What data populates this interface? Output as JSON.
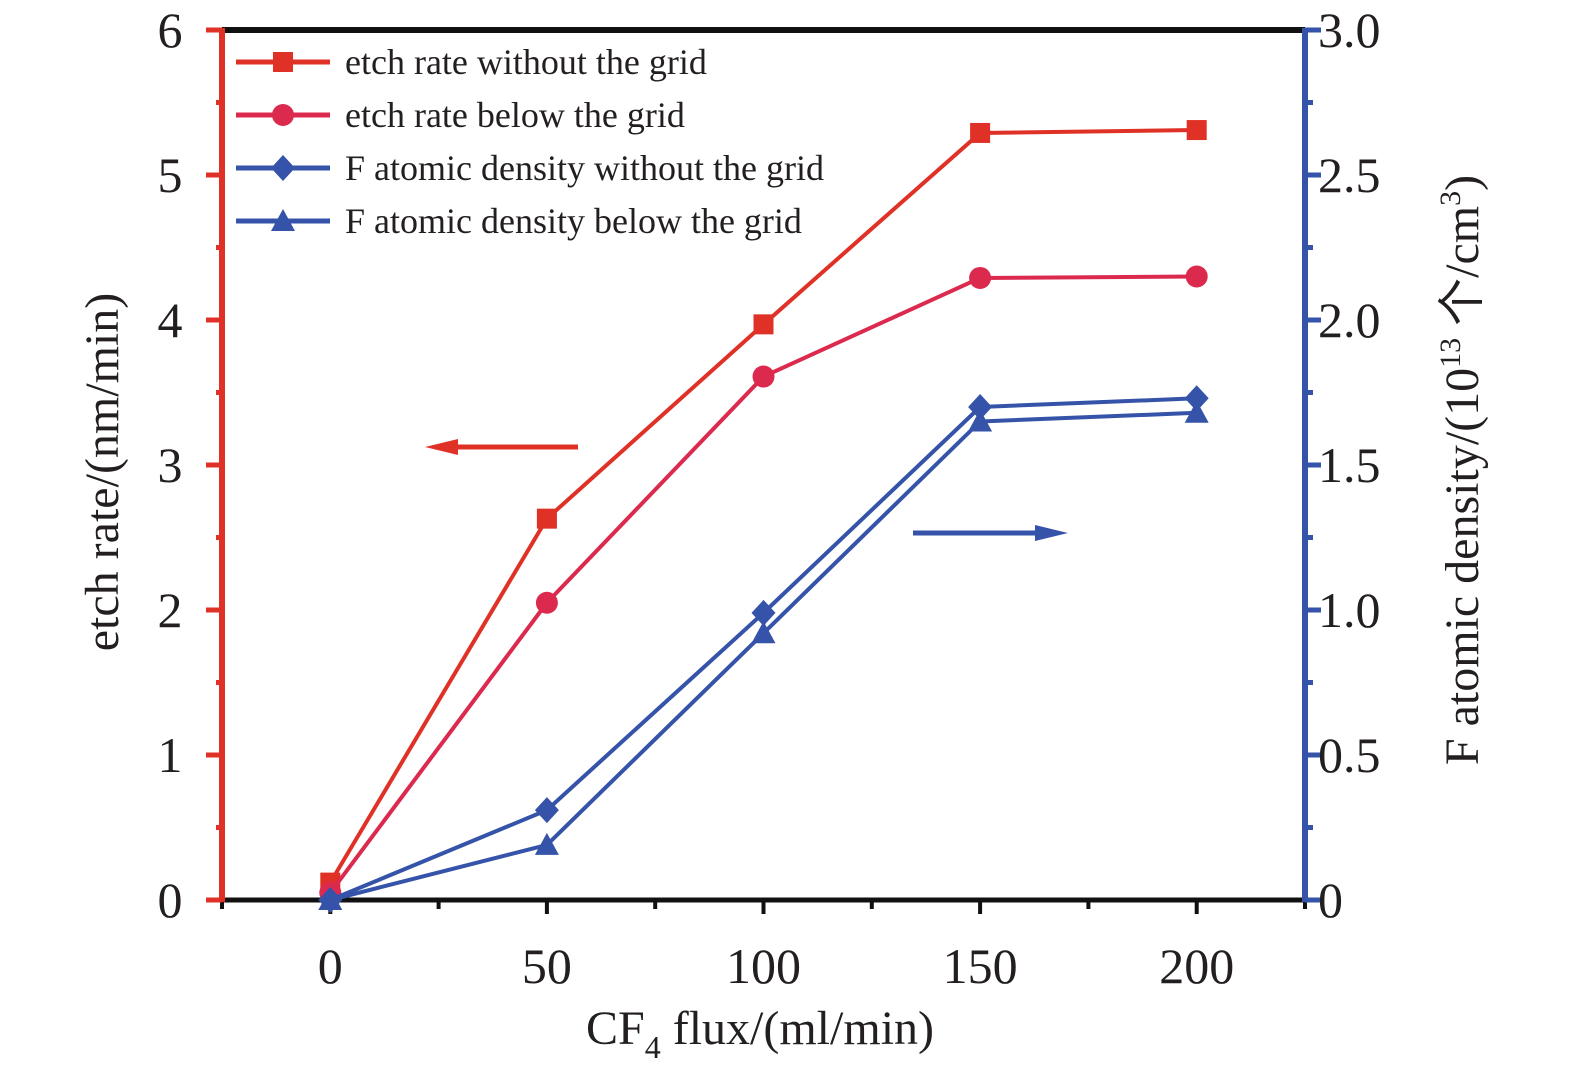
{
  "chart_data": {
    "type": "line",
    "title": "",
    "xlabel": "CF4 flux/(ml/min)",
    "xlabel_parts": {
      "main": "CF",
      "sub": "4",
      "rest": " flux/(ml/min)"
    },
    "ylabel_left": "etch rate/(nm/min)",
    "ylabel_right": "F atomic density/(10^13 个/cm^3)",
    "ylabel_right_parts": {
      "prefix": "F atomic density/(10",
      "sup1": "13",
      "mid": " 个/cm",
      "sup2": "3",
      "suffix": ")"
    },
    "x": [
      0,
      50,
      100,
      150,
      200
    ],
    "xlim": [
      -25,
      225
    ],
    "xticks": [
      0,
      50,
      100,
      150,
      200
    ],
    "xtick_labels": [
      "0",
      "50",
      "100",
      "150",
      "200"
    ],
    "ylim_left": [
      0,
      6
    ],
    "yticks_left": [
      0,
      1,
      2,
      3,
      4,
      5,
      6
    ],
    "ytick_labels_left": [
      "0",
      "1",
      "2",
      "3",
      "4",
      "5",
      "6"
    ],
    "ylim_right": [
      0,
      3.0
    ],
    "yticks_right": [
      0,
      0.5,
      1.0,
      1.5,
      2.0,
      2.5,
      3.0
    ],
    "ytick_labels_right": [
      "0",
      "0.5",
      "1.0",
      "1.5",
      "2.0",
      "2.5",
      "3.0"
    ],
    "grid": false,
    "legend_position": "top-left",
    "series": [
      {
        "name": "etch rate without the grid",
        "axis": "left",
        "marker": "square",
        "color": "#e03127",
        "values": [
          0.12,
          2.63,
          3.97,
          5.29,
          5.31
        ]
      },
      {
        "name": "etch rate below the grid",
        "axis": "left",
        "marker": "circle",
        "color": "#dc2a4e",
        "values": [
          0.05,
          2.05,
          3.61,
          4.29,
          4.3
        ]
      },
      {
        "name": "F atomic density without the grid",
        "axis": "right",
        "marker": "diamond",
        "color": "#3553a8",
        "values": [
          0.0,
          0.31,
          0.99,
          1.7,
          1.73
        ]
      },
      {
        "name": "F atomic density below the grid",
        "axis": "right",
        "marker": "triangle",
        "color": "#3553a8",
        "values": [
          0.0,
          0.19,
          0.92,
          1.65,
          1.68
        ]
      }
    ],
    "annotations": [
      {
        "type": "arrow",
        "direction": "left",
        "meaning": "red series read on left axis",
        "color": "#e03127"
      },
      {
        "type": "arrow",
        "direction": "right",
        "meaning": "blue series read on right axis",
        "color": "#3553a8"
      }
    ],
    "colors": {
      "left_axis": "#e03127",
      "right_axis": "#3553a8",
      "frame": "#111111"
    }
  }
}
